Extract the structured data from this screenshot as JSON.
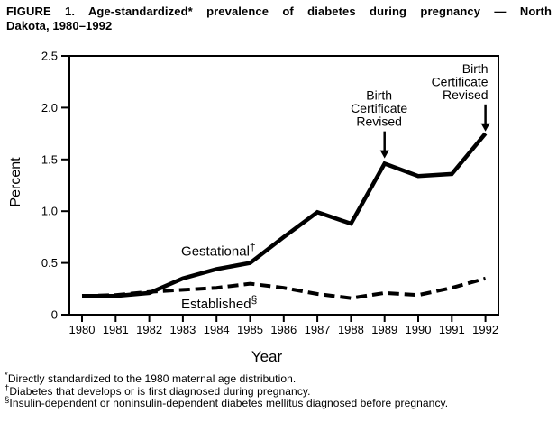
{
  "title": {
    "line1": "FIGURE 1. Age-standardized* prevalence of diabetes during pregnancy — North",
    "line2": "Dakota, 1980–1992"
  },
  "chart_data": {
    "type": "line",
    "title": "Age-standardized prevalence of diabetes during pregnancy, North Dakota, 1980-1992",
    "xlabel": "Year",
    "ylabel": "Percent",
    "x": [
      1980,
      1981,
      1982,
      1983,
      1984,
      1985,
      1986,
      1987,
      1988,
      1989,
      1990,
      1991,
      1992
    ],
    "series": [
      {
        "name": "Gestational",
        "superscript": "†",
        "line_style": "solid",
        "values": [
          0.18,
          0.18,
          0.21,
          0.35,
          0.44,
          0.5,
          0.75,
          0.99,
          0.88,
          1.46,
          1.34,
          1.36,
          1.75
        ]
      },
      {
        "name": "Established",
        "superscript": "§",
        "line_style": "dashed",
        "values": [
          0.18,
          0.19,
          0.22,
          0.24,
          0.26,
          0.3,
          0.26,
          0.2,
          0.16,
          0.21,
          0.19,
          0.26,
          0.35
        ]
      }
    ],
    "ylim": [
      0,
      2.5
    ],
    "yticks": [
      {
        "value": 0,
        "label": "0"
      },
      {
        "value": 0.5,
        "label": "0.5"
      },
      {
        "value": 1.0,
        "label": "1.0"
      },
      {
        "value": 1.5,
        "label": "1.5"
      },
      {
        "value": 2.0,
        "label": "2.0"
      },
      {
        "value": 2.5,
        "label": "2.5"
      }
    ],
    "grid": false,
    "legend": "inline-labels",
    "line_color": "#000000",
    "annotations": [
      {
        "lines": [
          "Birth",
          "Certificate",
          "Revised"
        ],
        "target_year": 1989,
        "target_value": 1.51,
        "text_align": "center"
      },
      {
        "lines": [
          "Birth",
          "Certificate",
          "Revised"
        ],
        "target_year": 1992,
        "target_value": 1.77,
        "text_align": "right"
      }
    ],
    "series_labels": [
      {
        "text": "Gestational",
        "superscript": "†",
        "anchor_year": 1982.95,
        "anchor_value": 0.57
      },
      {
        "text": "Established",
        "superscript": "§",
        "anchor_year": 1982.95,
        "anchor_value": 0.06
      }
    ]
  },
  "footnotes": [
    {
      "sup": "*",
      "text": "Directly standardized to the 1980 maternal age distribution."
    },
    {
      "sup": "†",
      "text": "Diabetes that develops or is first diagnosed during pregnancy."
    },
    {
      "sup": "§",
      "text": "Insulin-dependent or noninsulin-dependent diabetes mellitus diagnosed before pregnancy."
    }
  ],
  "colors": {
    "ink": "#000000",
    "background": "#ffffff"
  }
}
